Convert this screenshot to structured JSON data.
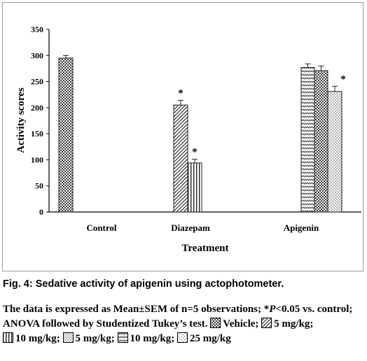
{
  "chart_data": {
    "type": "bar",
    "title": "",
    "xlabel": "Treatment",
    "ylabel": "Activity scores",
    "ylim": [
      0,
      350
    ],
    "yticks": [
      0,
      50,
      100,
      150,
      200,
      250,
      300,
      350
    ],
    "categories": [
      "Control",
      "Diazepam",
      "Apigenin"
    ],
    "bars": [
      {
        "category": "Control",
        "series": "Vehicle",
        "value": 295,
        "error": 5,
        "significant": false
      },
      {
        "category": "Diazepam",
        "series": "5 mg/kg",
        "value": 205,
        "error": 9,
        "significant": true
      },
      {
        "category": "Diazepam",
        "series": "10 mg/kg",
        "value": 94,
        "error": 7,
        "significant": true
      },
      {
        "category": "Apigenin",
        "series": "5 mg/kg",
        "value": 277,
        "error": 7,
        "significant": false
      },
      {
        "category": "Apigenin",
        "series": "10 mg/kg",
        "value": 271,
        "error": 9,
        "significant": false
      },
      {
        "category": "Apigenin",
        "series": "25 mg/kg",
        "value": 231,
        "error": 10,
        "significant": true
      }
    ],
    "significance_marker": "*",
    "grid": false,
    "legend": "in caption"
  },
  "caption": {
    "title": "Fig. 4:  Sedative activity of apigenin using actophotometer.",
    "note_before_p": "The data is expressed as Mean±SEM of n=5 observations; *",
    "p_symbol": "P",
    "note_after_p": "<0.05 vs. control; ANOVA followed by Studentized Tukey’s test.",
    "legend_items": [
      {
        "pattern": "checker",
        "label": "Vehicle;"
      },
      {
        "pattern": "diag",
        "label": "5 mg/kg;"
      },
      {
        "pattern": "vert",
        "label": "10 mg/kg;"
      },
      {
        "pattern": "dots",
        "label": "5 mg/kg;"
      },
      {
        "pattern": "zigzag",
        "label": "10 mg/kg;"
      },
      {
        "pattern": "sparse",
        "label": "25 mg/kg"
      }
    ]
  },
  "colors": {
    "axis": "#000000",
    "frame": "#9a9a9a",
    "bar_dark": "#555555"
  }
}
